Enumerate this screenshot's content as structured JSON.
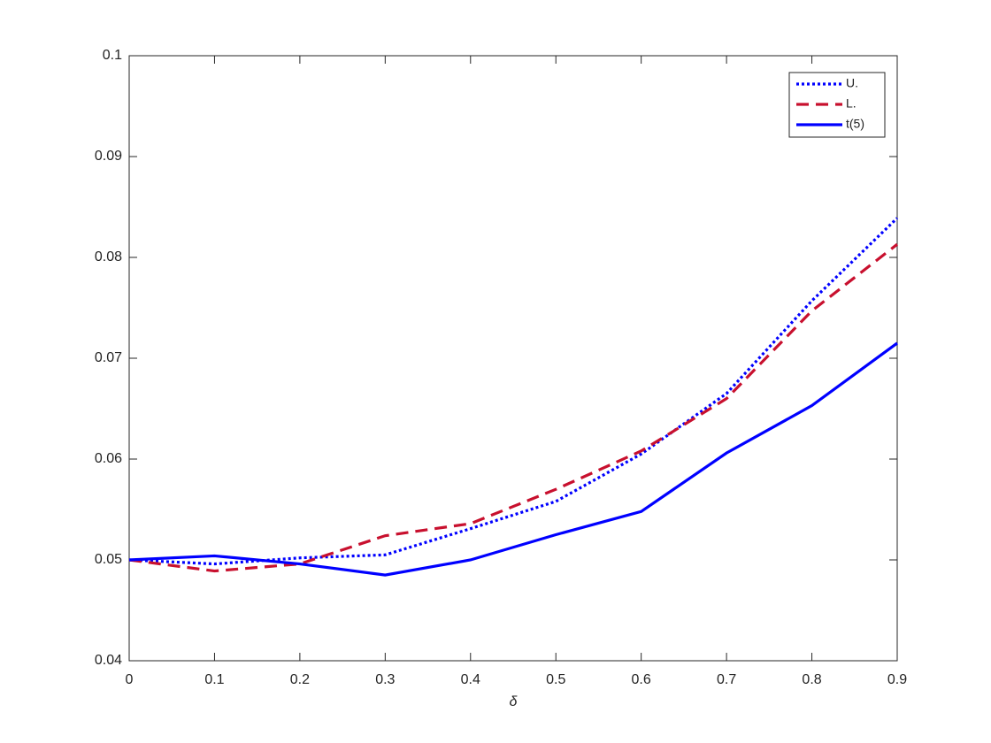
{
  "chart_data": {
    "type": "line",
    "x": [
      0,
      0.1,
      0.2,
      0.3,
      0.4,
      0.5,
      0.6,
      0.7,
      0.8,
      0.9
    ],
    "xlabel": "δ",
    "xlim": [
      0,
      0.9
    ],
    "xticks": [
      0,
      0.1,
      0.2,
      0.3,
      0.4,
      0.5,
      0.6,
      0.7,
      0.8,
      0.9
    ],
    "ylim": [
      0.04,
      0.1
    ],
    "yticks": [
      0.04,
      0.05,
      0.06,
      0.07,
      0.08,
      0.09,
      0.1
    ],
    "legend": "upper right",
    "series": [
      {
        "name": "U.",
        "color": "#0000ff",
        "line_style": "dotted",
        "values": [
          0.05,
          0.0496,
          0.0502,
          0.0505,
          0.0531,
          0.0558,
          0.0605,
          0.0665,
          0.0757,
          0.0839
        ]
      },
      {
        "name": "L.",
        "color": "#c8102e",
        "line_style": "dashed",
        "values": [
          0.05,
          0.0489,
          0.0496,
          0.0524,
          0.0536,
          0.057,
          0.0608,
          0.066,
          0.0747,
          0.0813
        ]
      },
      {
        "name": "t(5)",
        "color": "#0000ff",
        "line_style": "solid",
        "values": [
          0.05,
          0.0504,
          0.0496,
          0.0485,
          0.05,
          0.0525,
          0.0548,
          0.0606,
          0.0653,
          0.0715
        ]
      }
    ]
  }
}
